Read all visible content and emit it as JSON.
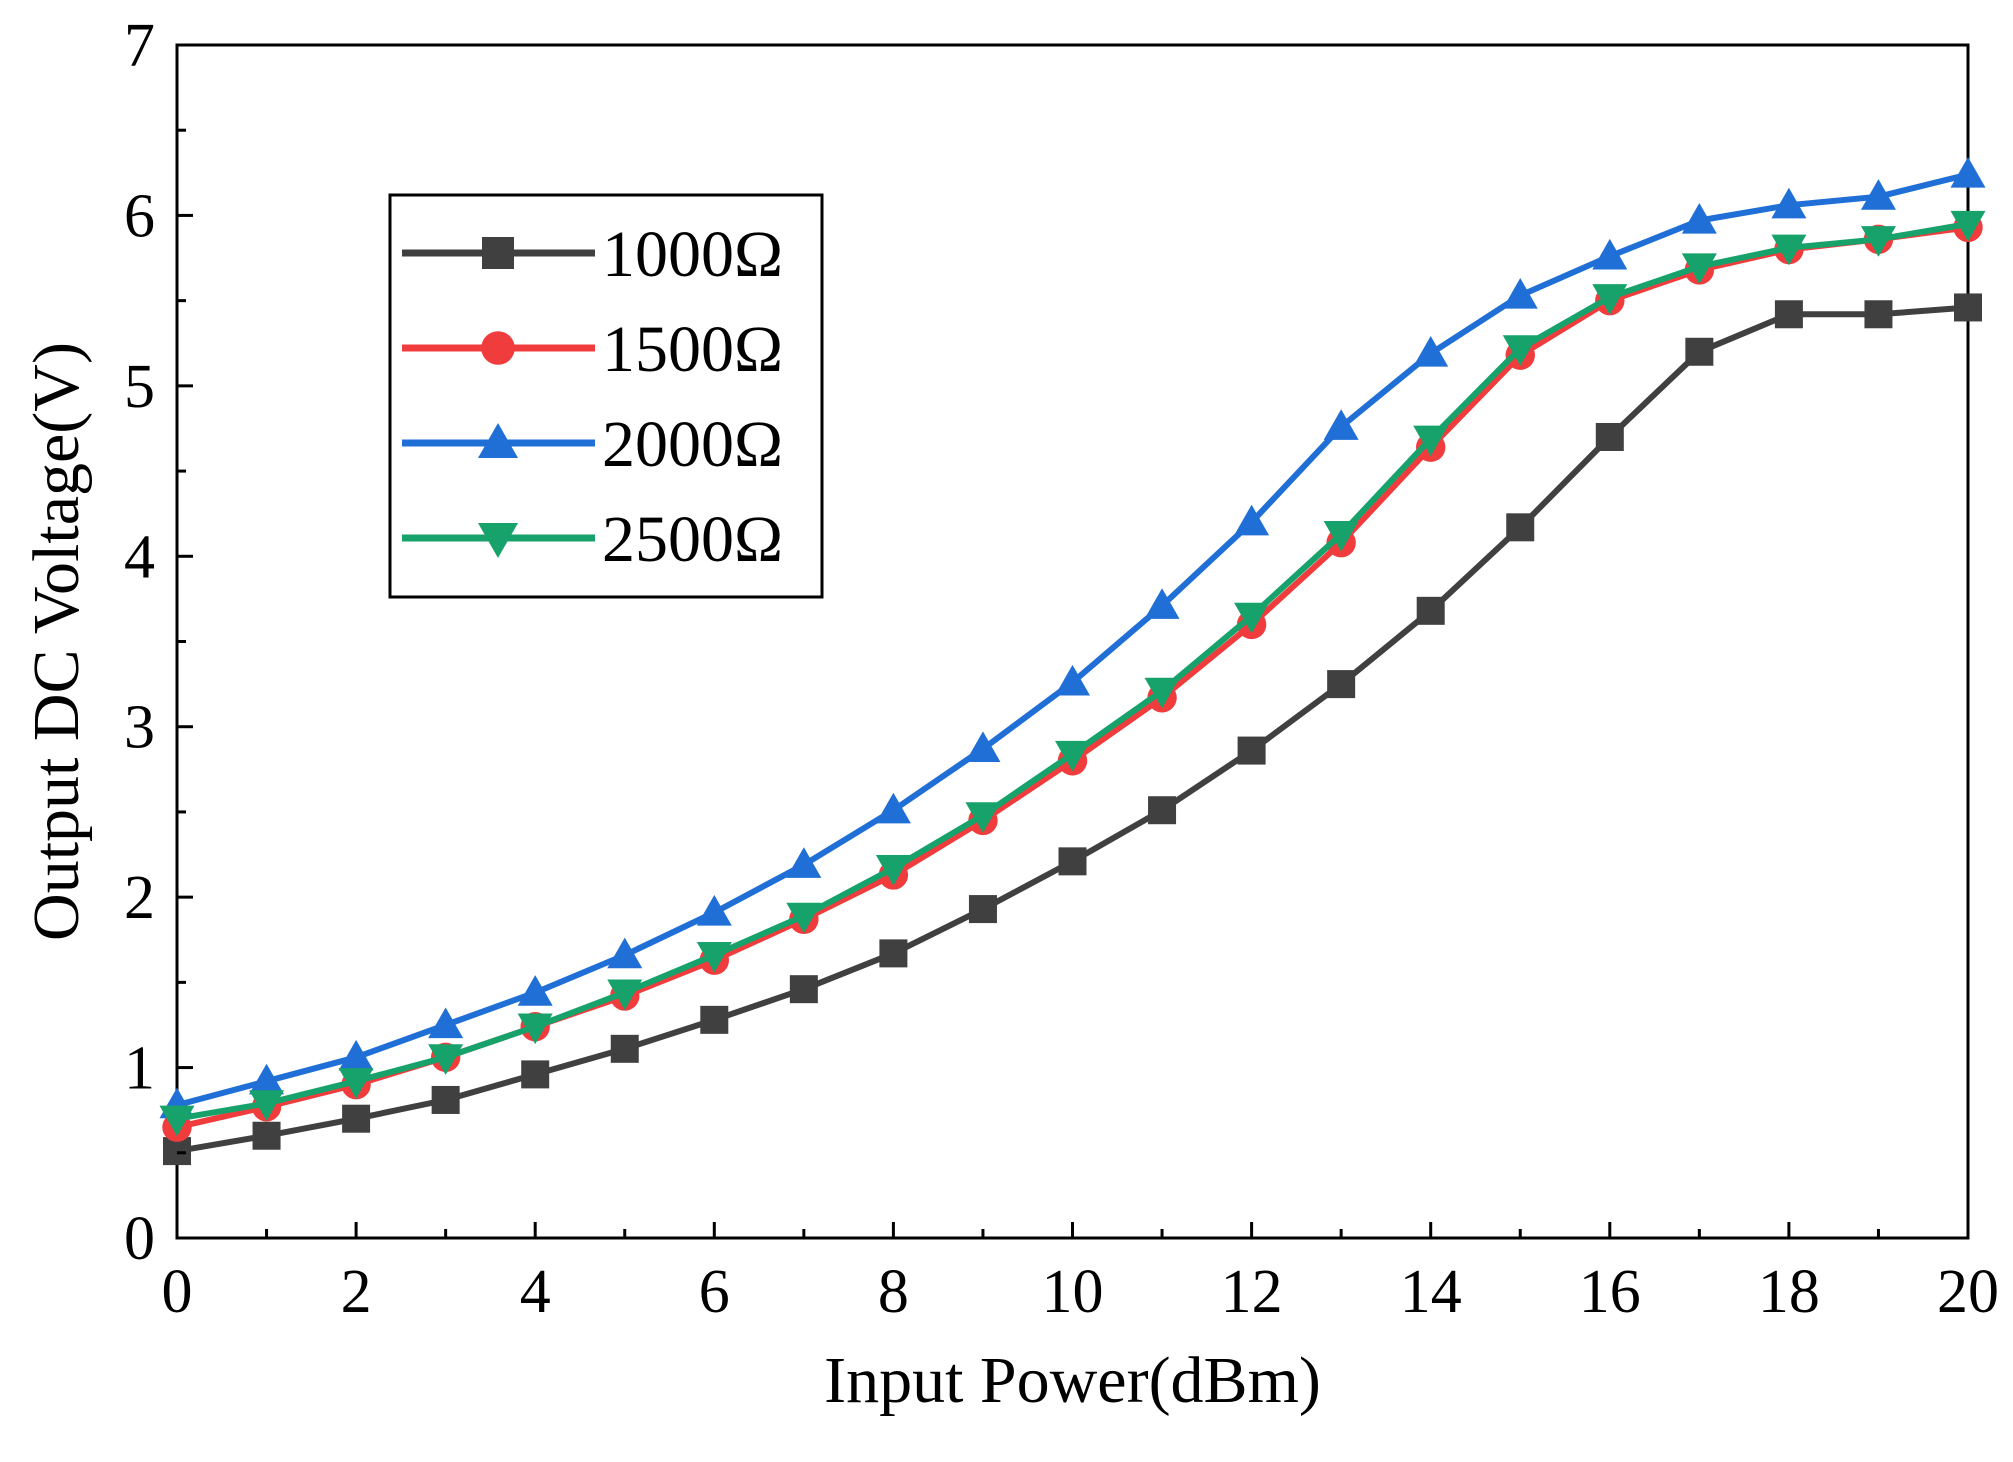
{
  "chart_data": {
    "type": "line",
    "title": "",
    "xlabel": "Input Power(dBm)",
    "ylabel": "Output DC Voltage(V)",
    "xlim": [
      0,
      20
    ],
    "ylim": [
      0,
      7
    ],
    "xticks": [
      "0",
      "2",
      "4",
      "6",
      "8",
      "10",
      "12",
      "14",
      "16",
      "18",
      "20"
    ],
    "yticks": [
      "0",
      "1",
      "2",
      "3",
      "4",
      "5",
      "6",
      "7"
    ],
    "grid": false,
    "legend_position": "top-left",
    "x": [
      0,
      1,
      2,
      3,
      4,
      5,
      6,
      7,
      8,
      9,
      10,
      11,
      12,
      13,
      14,
      15,
      16,
      17,
      18,
      19,
      20
    ],
    "series": [
      {
        "name": "1000Ω",
        "color": "#404040",
        "marker": "square",
        "values": [
          0.51,
          0.6,
          0.7,
          0.81,
          0.96,
          1.11,
          1.28,
          1.46,
          1.67,
          1.93,
          2.21,
          2.51,
          2.86,
          3.25,
          3.68,
          4.17,
          4.7,
          5.2,
          5.42,
          5.42,
          5.46
        ]
      },
      {
        "name": "1500Ω",
        "color": "#f03c3c",
        "marker": "circle",
        "values": [
          0.65,
          0.77,
          0.9,
          1.06,
          1.24,
          1.42,
          1.63,
          1.87,
          2.13,
          2.45,
          2.8,
          3.17,
          3.6,
          4.08,
          4.64,
          5.18,
          5.5,
          5.68,
          5.8,
          5.86,
          5.93
        ]
      },
      {
        "name": "2000Ω",
        "color": "#1f6fd6",
        "marker": "triangle-up",
        "values": [
          0.78,
          0.92,
          1.06,
          1.25,
          1.44,
          1.66,
          1.91,
          2.19,
          2.51,
          2.87,
          3.26,
          3.71,
          4.2,
          4.76,
          5.19,
          5.53,
          5.76,
          5.97,
          6.06,
          6.11,
          6.24
        ]
      },
      {
        "name": "2500Ω",
        "color": "#17a26b",
        "marker": "triangle-down",
        "values": [
          0.7,
          0.79,
          0.92,
          1.06,
          1.24,
          1.44,
          1.66,
          1.89,
          2.17,
          2.48,
          2.84,
          3.21,
          3.65,
          4.13,
          4.69,
          5.22,
          5.52,
          5.7,
          5.81,
          5.86,
          5.95
        ]
      }
    ]
  }
}
